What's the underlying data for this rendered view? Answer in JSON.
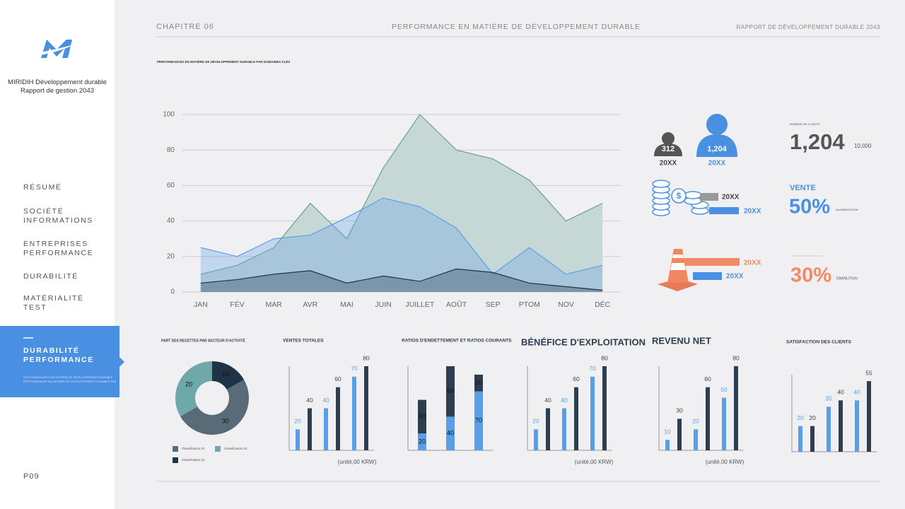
{
  "sidebar": {
    "company": "MIRIDIH Développement durable",
    "report": "Rapport de gestion 2043",
    "nav": [
      "RÉSUMÉ",
      "SOCIÉTÉ INFORMATIONS",
      "ENTREPRISES PERFORMANCE",
      "DURABILITÉ",
      "MATÉRIALITÉ TEST"
    ],
    "active": "DURABILITÉ PERFORMANCE",
    "active_note": "FAITS MARQUANTS EN MATIÈRE DE DÉVELOPPEMENT DURABLE PERFORMANCES EN MATIÈRE DE DÉVELOPPEMENT DURABLE PAR DOMAINES",
    "page": "P09"
  },
  "header": {
    "chapter": "CHAPITRE 06",
    "title": "PERFORMANCE EN MATIÈRE DE DÉVELOPPEMENT DURABLE",
    "report": "RAPPORT DE DÉVELOPPEMENT DURABLE 2043"
  },
  "infographic": {
    "users_small": "312",
    "users_large": "1,204",
    "year_a": "20XX",
    "year_b": "20XX",
    "clients_title": "NOMBRE DE CLIENTS",
    "clients_value": "1,204",
    "clients_target": "10,000",
    "coins_year_a": "20XX",
    "coins_year_b": "20XX",
    "sales_title": "VENTE",
    "sales_value": "50%",
    "sales_note": "AUGMENTATION",
    "cone_year_a": "20XX",
    "cone_year_b": "20XX",
    "decrease_value": "30%",
    "decrease_note": "DIMINUTION"
  },
  "chart_data": [
    {
      "type": "area",
      "title": "PERFORMANCES EN MATIÈRE DE DÉVELOPPEMENT DURABLE PAR DOMAINES CLÉS",
      "categories": [
        "JAN",
        "FÉV",
        "MAR",
        "AVR",
        "MAI",
        "JUIN",
        "JUILLET",
        "AOÛT",
        "SEP",
        "PTOM",
        "NOV",
        "DÉC"
      ],
      "series": [
        {
          "color": "#6a9f8a",
          "values": [
            10,
            15,
            25,
            50,
            30,
            70,
            100,
            80,
            75,
            63,
            40,
            50
          ]
        },
        {
          "color": "#5a9ee8",
          "values": [
            25,
            20,
            30,
            32,
            42,
            53,
            48,
            36,
            10,
            25,
            10,
            15
          ]
        },
        {
          "color": "#1e3446",
          "values": [
            5,
            7,
            10,
            12,
            5,
            9,
            6,
            13,
            11,
            5,
            3,
            1
          ]
        }
      ],
      "ylim": [
        0,
        100
      ],
      "yticks": [
        0,
        20,
        40,
        60,
        80,
        100
      ],
      "grid": true
    },
    {
      "type": "donut",
      "title": "PART DES RECETTES PAR SECTEUR D'ACTIVITÉ",
      "categories": [
        "Classification 01",
        "Classification 01",
        "Classification 01"
      ],
      "values": [
        30,
        20,
        10
      ],
      "colors": [
        "#5a6b78",
        "#6fa8a8",
        "#1e3446"
      ]
    },
    {
      "type": "bar",
      "title": "VENTES TOTALES",
      "values": [
        20,
        40,
        40,
        60,
        70,
        80
      ],
      "colors": [
        "#5a9ee8",
        "#2c3e50",
        "#5a9ee8",
        "#2c3e50",
        "#5a9ee8",
        "#2c3e50"
      ],
      "ylim": [
        0,
        80
      ],
      "note": "(unité,00 KRW)"
    },
    {
      "type": "stacked_bar",
      "title": "RATIOS D'ENDETTEMENT ET RATIOS COURANTS",
      "series": [
        {
          "color": "#5a9ee8",
          "values": [
            20,
            40,
            70
          ]
        },
        {
          "color": "#2c3e50",
          "values": [
            40,
            60,
            20
          ]
        }
      ],
      "ylim": [
        0,
        100
      ]
    },
    {
      "type": "bar",
      "title": "BÉNÉFICE D'EXPLOITATION",
      "values": [
        20,
        40,
        40,
        60,
        70,
        80
      ],
      "colors": [
        "#5a9ee8",
        "#2c3e50",
        "#5a9ee8",
        "#2c3e50",
        "#5a9ee8",
        "#2c3e50"
      ],
      "ylim": [
        0,
        80
      ],
      "note": "(unité,00 KRW)"
    },
    {
      "type": "bar",
      "title": "REVENU NET",
      "values": [
        10,
        30,
        20,
        60,
        50,
        80
      ],
      "colors": [
        "#5a9ee8",
        "#2c3e50",
        "#5a9ee8",
        "#2c3e50",
        "#5a9ee8",
        "#2c3e50"
      ],
      "ylim": [
        0,
        80
      ],
      "note": "(unité,00 KRW)"
    },
    {
      "type": "bar",
      "title": "SATISFACTION DES CLIENTS",
      "values": [
        20,
        20,
        35,
        40,
        40,
        55
      ],
      "colors": [
        "#5a9ee8",
        "#2c3e50",
        "#5a9ee8",
        "#2c3e50",
        "#5a9ee8",
        "#2c3e50"
      ],
      "ylim": [
        0,
        60
      ]
    }
  ]
}
